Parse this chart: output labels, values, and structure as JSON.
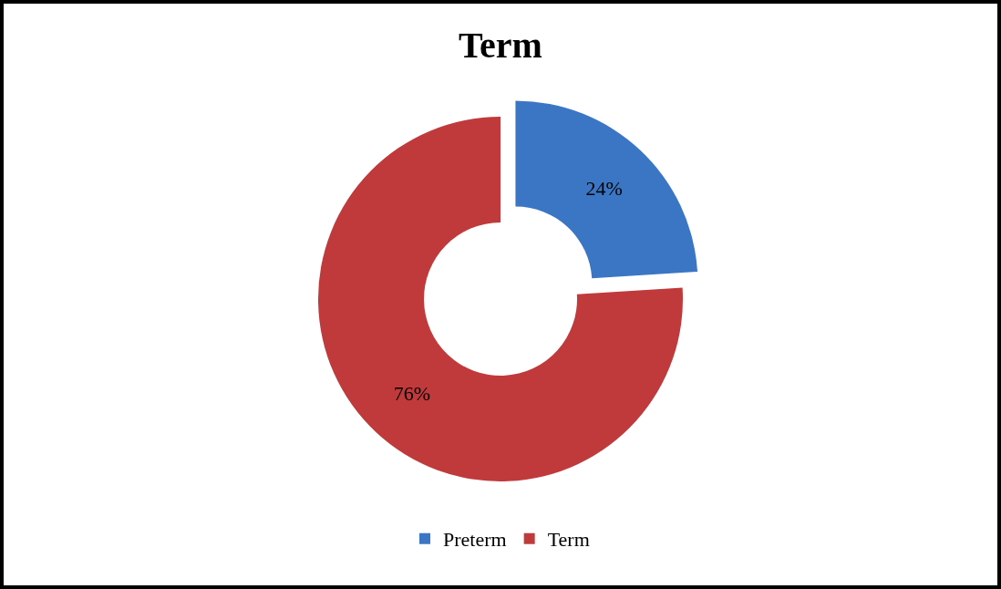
{
  "chart_data": {
    "type": "donut",
    "title": "Term",
    "categories": [
      "Preterm",
      "Term"
    ],
    "values": [
      24,
      76
    ],
    "colors": [
      "#3b76c4",
      "#c0393b"
    ],
    "value_labels": [
      "24%",
      "76%"
    ],
    "legend": "bottom"
  }
}
